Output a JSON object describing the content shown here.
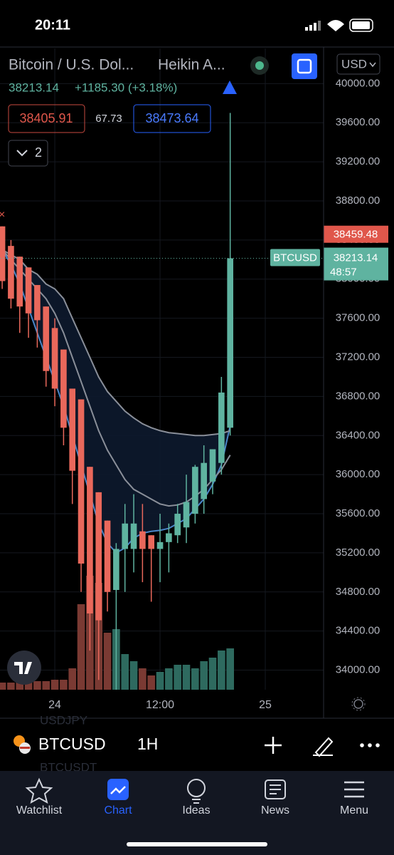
{
  "status_bar": {
    "time": "20:11"
  },
  "header": {
    "symbol": "Bitcoin / U.S. Dol...",
    "chart_style": "Heikin A...",
    "change": "+1185.30 (+3.18%)",
    "sell": "38405.91",
    "spread": "67.73",
    "buy": "38473.64",
    "indicators_count": "2",
    "currency": "USD"
  },
  "chart_data": {
    "type": "candlestick",
    "x": [
      -6,
      -5,
      -4,
      -3,
      -2,
      -1,
      0,
      1,
      2,
      3,
      4,
      5,
      6,
      7,
      8,
      9,
      10,
      11,
      12,
      13,
      14,
      15,
      16,
      17,
      18,
      19,
      20
    ],
    "open": [
      38540,
      38340,
      38230,
      38120,
      37940,
      37720,
      37500,
      37280,
      36880,
      36770,
      36080,
      35820,
      35530,
      34820,
      35240,
      35240,
      35420,
      35380,
      35240,
      35310,
      35380,
      35460,
      35600,
      35750,
      35930,
      36120,
      36480
    ],
    "high": [
      38540,
      38400,
      38230,
      38120,
      37940,
      37720,
      37600,
      37280,
      36880,
      36770,
      36080,
      35820,
      35530,
      35300,
      35700,
      35800,
      35700,
      35380,
      35600,
      35500,
      35700,
      36000,
      36100,
      36300,
      36260,
      37000,
      39700
    ],
    "low": [
      37900,
      37700,
      37450,
      37400,
      37300,
      36900,
      36700,
      36300,
      35700,
      34800,
      34200,
      33900,
      34600,
      33800,
      34800,
      35000,
      34900,
      34700,
      34900,
      35000,
      35300,
      35300,
      35500,
      35600,
      35800,
      36000,
      36400
    ],
    "close": [
      37980,
      37800,
      37720,
      37650,
      37580,
      37060,
      36880,
      36480,
      36040,
      35090,
      34580,
      34510,
      34800,
      35240,
      35500,
      35500,
      35240,
      35240,
      35310,
      35400,
      35600,
      35720,
      36080,
      36120,
      36260,
      36840,
      38213.14
    ],
    "volume": [
      10,
      10,
      12,
      12,
      12,
      12,
      14,
      14,
      30,
      120,
      160,
      150,
      80,
      85,
      50,
      40,
      30,
      20,
      25,
      30,
      35,
      35,
      30,
      40,
      45,
      55,
      58
    ],
    "series": [
      {
        "color": "#4a86c8",
        "values": [
          38300,
          38150,
          37950,
          37700,
          37450,
          37200,
          36950,
          36700,
          36400,
          36100,
          35800,
          35500,
          35300,
          35200,
          35250,
          35350,
          35400,
          35420,
          35430,
          35450,
          35500,
          35550,
          35650,
          35750,
          35900,
          36100,
          36500
        ]
      },
      {
        "color": "#8a8f99",
        "values": [
          38300,
          38200,
          38100,
          38000,
          37900,
          37800,
          37650,
          37450,
          37200,
          36950,
          36700,
          36450,
          36250,
          36100,
          35950,
          35850,
          35800,
          35750,
          35700,
          35680,
          35690,
          35720,
          35780,
          35850,
          35950,
          36050,
          36200
        ]
      },
      {
        "color": "#8a8f99",
        "values": [
          38300,
          38250,
          38200,
          38100,
          38050,
          37950,
          37900,
          37800,
          37600,
          37400,
          37200,
          37000,
          36850,
          36750,
          36650,
          36580,
          36520,
          36480,
          36450,
          36430,
          36420,
          36410,
          36400,
          36400,
          36410,
          36420,
          36450
        ]
      }
    ],
    "up_color": "#5fb3a0",
    "down_color": "#e9685b",
    "up_volume_color": "#2e6a5f",
    "down_volume_color": "#7a3a33",
    "ylim": [
      33800,
      40360
    ],
    "yticks": [
      {
        "value": 34000,
        "label": "34000.00"
      },
      {
        "value": 34400,
        "label": "34400.00"
      },
      {
        "value": 34800,
        "label": "34800.00"
      },
      {
        "value": 35200,
        "label": "35200.00"
      },
      {
        "value": 35600,
        "label": "35600.00"
      },
      {
        "value": 36000,
        "label": "36000.00"
      },
      {
        "value": 36400,
        "label": "36400.00"
      },
      {
        "value": 36800,
        "label": "36800.00"
      },
      {
        "value": 37200,
        "label": "37200.00"
      },
      {
        "value": 37600,
        "label": "37600.00"
      },
      {
        "value": 38000,
        "label": "38000.00"
      },
      {
        "value": 38400,
        "label": "38400.00"
      },
      {
        "value": 38800,
        "label": "38800.00"
      },
      {
        "value": 39200,
        "label": "39200.00"
      },
      {
        "value": 39600,
        "label": "39600.00"
      },
      {
        "value": 40000,
        "label": "40000.00"
      }
    ],
    "xlim": [
      -6.25,
      30.65
    ],
    "xticks": [
      {
        "value": 0,
        "label": "24"
      },
      {
        "value": 12,
        "label": "12:00"
      },
      {
        "value": 24,
        "label": "25"
      }
    ],
    "grid": true,
    "ask_line": 38459.48,
    "symbol_tag": "BTCUSD",
    "countdown": "48:57"
  },
  "bottom_bar": {
    "ghost_symbols": [
      "USDJPY",
      "BTCUSDT"
    ],
    "symbol": "BTCUSD",
    "interval": "1H"
  },
  "tabs": [
    "Watchlist",
    "Chart",
    "Ideas",
    "News",
    "Menu"
  ]
}
